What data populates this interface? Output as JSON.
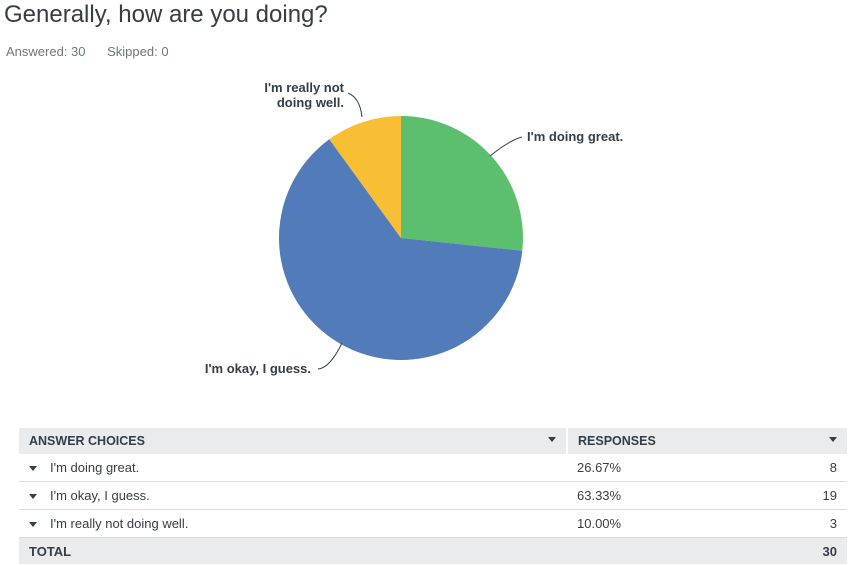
{
  "question": {
    "title": "Generally, how are you doing?",
    "answered_label": "Answered: 30",
    "skipped_label": "Skipped: 0"
  },
  "chart_data": {
    "type": "pie",
    "categories": [
      "I'm doing great.",
      "I'm okay, I guess.",
      "I'm really not doing well."
    ],
    "values": [
      26.67,
      63.33,
      10.0
    ],
    "colors": [
      "#5bbf6e",
      "#527bb9",
      "#f8be34"
    ],
    "start_angle": "12 o'clock",
    "direction": "clockwise"
  },
  "table": {
    "header_choices": "ANSWER CHOICES",
    "header_responses": "RESPONSES",
    "rows": [
      {
        "choice": "I'm doing great.",
        "percent": "26.67%",
        "count": "8"
      },
      {
        "choice": "I'm okay, I guess.",
        "percent": "63.33%",
        "count": "19"
      },
      {
        "choice": "I'm really not doing well.",
        "percent": "10.00%",
        "count": "3"
      }
    ],
    "total_label": "TOTAL",
    "total_value": "30"
  },
  "icons": {
    "sort": "chevron-down-icon",
    "row_expand": "chevron-down-icon"
  }
}
